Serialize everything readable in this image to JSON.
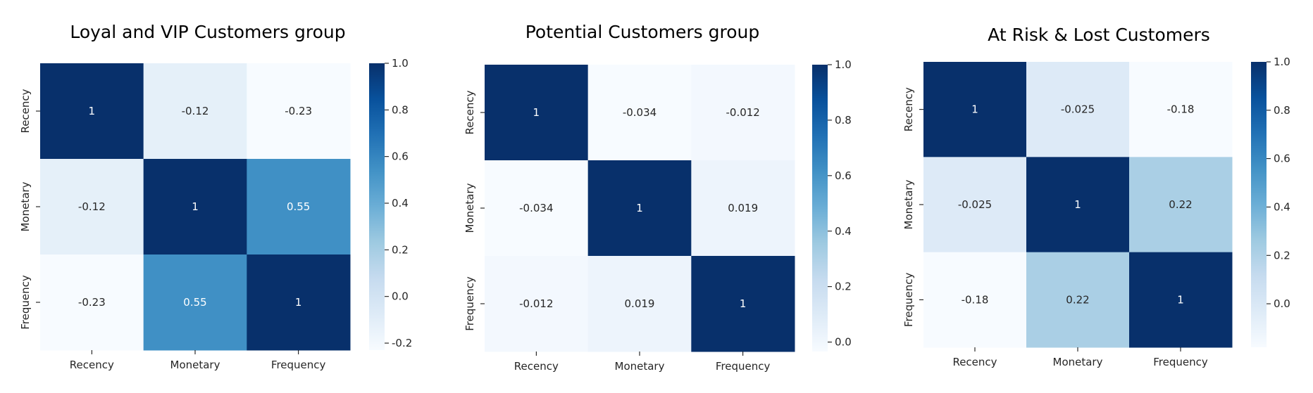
{
  "chart_data": [
    {
      "type": "heatmap",
      "title": "Loyal and VIP Customers group",
      "x_categories": [
        "Recency",
        "Monetary",
        "Frequency"
      ],
      "y_categories": [
        "Recency",
        "Monetary",
        "Frequency"
      ],
      "values": [
        [
          1,
          -0.12,
          -0.23
        ],
        [
          -0.12,
          1,
          0.55
        ],
        [
          -0.23,
          0.55,
          1
        ]
      ],
      "labels": [
        [
          "1",
          "-0.12",
          "-0.23"
        ],
        [
          "-0.12",
          "1",
          "0.55"
        ],
        [
          "-0.23",
          "0.55",
          "1"
        ]
      ],
      "colorbar": {
        "min": -0.23,
        "max": 1.0,
        "ticks": [
          "1.0",
          "0.8",
          "0.6",
          "0.4",
          "0.2",
          "0.0",
          "-0.2"
        ]
      },
      "colormap": "Blues"
    },
    {
      "type": "heatmap",
      "title": "Potential Customers group",
      "x_categories": [
        "Recency",
        "Monetary",
        "Frequency"
      ],
      "y_categories": [
        "Recency",
        "Monetary",
        "Frequency"
      ],
      "values": [
        [
          1,
          -0.034,
          -0.012
        ],
        [
          -0.034,
          1,
          0.019
        ],
        [
          -0.012,
          0.019,
          1
        ]
      ],
      "labels": [
        [
          "1",
          "-0.034",
          "-0.012"
        ],
        [
          "-0.034",
          "1",
          "0.019"
        ],
        [
          "-0.012",
          "0.019",
          "1"
        ]
      ],
      "colorbar": {
        "min": -0.034,
        "max": 1.0,
        "ticks": [
          "1.0",
          "0.8",
          "0.6",
          "0.4",
          "0.2",
          "0.0"
        ]
      },
      "colormap": "Blues"
    },
    {
      "type": "heatmap",
      "title": "At Risk & Lost Customers",
      "x_categories": [
        "Recency",
        "Monetary",
        "Frequency"
      ],
      "y_categories": [
        "Recency",
        "Monetary",
        "Frequency"
      ],
      "values": [
        [
          1,
          -0.025,
          -0.18
        ],
        [
          -0.025,
          1,
          0.22
        ],
        [
          -0.18,
          0.22,
          1
        ]
      ],
      "labels": [
        [
          "1",
          "-0.025",
          "-0.18"
        ],
        [
          "-0.025",
          "1",
          "0.22"
        ],
        [
          "-0.18",
          "0.22",
          "1"
        ]
      ],
      "colorbar": {
        "min": -0.18,
        "max": 1.0,
        "ticks": [
          "1.0",
          "0.8",
          "0.6",
          "0.4",
          "0.2",
          "0.0"
        ]
      },
      "colormap": "Blues"
    }
  ]
}
